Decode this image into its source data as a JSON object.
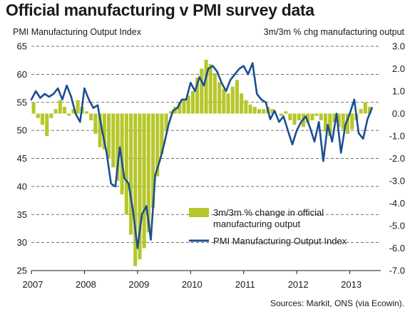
{
  "title": "Official manufacturing v PMI survey data",
  "source": "Sources: Markit, ONS (via Ecowin).",
  "chart_data": {
    "type": "bar",
    "left_axis_title": "PMI Manufacturing Output Index",
    "right_axis_title": "3m/3m % chg manufacturing output",
    "left_ylim": [
      25,
      65
    ],
    "left_ticks": [
      "25",
      "30",
      "35",
      "40",
      "45",
      "50",
      "55",
      "60",
      "65"
    ],
    "right_ylim": [
      -7.0,
      3.0
    ],
    "right_ticks": [
      "-7.0",
      "-6.0",
      "-5.0",
      "-4.0",
      "-3.0",
      "-2.0",
      "-1.0",
      "0.0",
      "1.0",
      "2.0",
      "3.0"
    ],
    "x_tick_labels": [
      "2007",
      "2008",
      "2009",
      "2010",
      "2011",
      "2012",
      "2013"
    ],
    "x_range": [
      2007.0,
      2013.583
    ],
    "grid": true,
    "legend_position": "lower-right",
    "colors": {
      "bars": "#b6c72b",
      "line": "#1b4f91",
      "grid": "#444444"
    },
    "series": [
      {
        "name": "3m/3m % change in official manufacturing output",
        "axis": "right",
        "type": "bar",
        "x": [
          2007.042,
          2007.125,
          2007.208,
          2007.292,
          2007.375,
          2007.458,
          2007.542,
          2007.625,
          2007.708,
          2007.792,
          2007.875,
          2007.958,
          2008.042,
          2008.125,
          2008.208,
          2008.292,
          2008.375,
          2008.458,
          2008.542,
          2008.625,
          2008.708,
          2008.792,
          2008.875,
          2008.958,
          2009.042,
          2009.125,
          2009.208,
          2009.292,
          2009.375,
          2009.458,
          2009.542,
          2009.625,
          2009.708,
          2009.792,
          2009.875,
          2009.958,
          2010.042,
          2010.125,
          2010.208,
          2010.292,
          2010.375,
          2010.458,
          2010.542,
          2010.625,
          2010.708,
          2010.792,
          2010.875,
          2010.958,
          2011.042,
          2011.125,
          2011.208,
          2011.292,
          2011.375,
          2011.458,
          2011.542,
          2011.625,
          2011.708,
          2011.792,
          2011.875,
          2011.958,
          2012.042,
          2012.125,
          2012.208,
          2012.292,
          2012.375,
          2012.458,
          2012.542,
          2012.625,
          2012.708,
          2012.792,
          2012.875,
          2012.958,
          2013.042,
          2013.125,
          2013.208,
          2013.292,
          2013.375
        ],
        "values": [
          0.5,
          -0.2,
          -0.5,
          -1.0,
          -0.2,
          0.2,
          0.6,
          0.3,
          -0.1,
          0.2,
          0.6,
          0.3,
          0.1,
          -0.3,
          -0.9,
          -1.5,
          -1.6,
          -2.0,
          -2.4,
          -3.0,
          -3.6,
          -4.5,
          -5.4,
          -6.8,
          -6.5,
          -6.0,
          -5.3,
          -4.2,
          -2.8,
          -1.8,
          -0.8,
          0.1,
          0.3,
          0.5,
          0.6,
          0.8,
          1.0,
          1.6,
          2.0,
          2.4,
          2.2,
          1.8,
          1.4,
          1.1,
          0.9,
          1.2,
          1.5,
          0.9,
          0.6,
          0.4,
          0.3,
          0.2,
          0.2,
          0.3,
          0.2,
          0.0,
          -0.1,
          0.1,
          -0.3,
          -0.5,
          -0.3,
          -0.6,
          -0.4,
          -0.3,
          -0.1,
          -0.3,
          -0.8,
          -1.0,
          -0.4,
          -0.6,
          -0.7,
          -0.9,
          -0.7,
          -0.3,
          0.2,
          0.5,
          0.3
        ]
      },
      {
        "name": "PMI Manufacturing Output Index",
        "axis": "left",
        "type": "line",
        "x": [
          2007.0,
          2007.083,
          2007.167,
          2007.25,
          2007.333,
          2007.417,
          2007.5,
          2007.583,
          2007.667,
          2007.75,
          2007.833,
          2007.917,
          2008.0,
          2008.083,
          2008.167,
          2008.25,
          2008.333,
          2008.417,
          2008.5,
          2008.583,
          2008.667,
          2008.75,
          2008.833,
          2008.917,
          2009.0,
          2009.083,
          2009.167,
          2009.25,
          2009.333,
          2009.417,
          2009.5,
          2009.583,
          2009.667,
          2009.75,
          2009.833,
          2009.917,
          2010.0,
          2010.083,
          2010.167,
          2010.25,
          2010.333,
          2010.417,
          2010.5,
          2010.583,
          2010.667,
          2010.75,
          2010.833,
          2010.917,
          2011.0,
          2011.083,
          2011.167,
          2011.25,
          2011.333,
          2011.417,
          2011.5,
          2011.583,
          2011.667,
          2011.75,
          2011.833,
          2011.917,
          2012.0,
          2012.083,
          2012.167,
          2012.25,
          2012.333,
          2012.417,
          2012.5,
          2012.583,
          2012.667,
          2012.75,
          2012.833,
          2012.917,
          2013.0,
          2013.083,
          2013.167,
          2013.25,
          2013.333,
          2013.417
        ],
        "values": [
          55.5,
          57.0,
          55.8,
          56.5,
          56.0,
          56.5,
          57.5,
          55.5,
          58.0,
          56.0,
          53.0,
          51.5,
          57.5,
          55.5,
          54.0,
          54.5,
          50.0,
          46.0,
          40.5,
          40.0,
          47.0,
          41.5,
          40.5,
          35.5,
          29.0,
          35.0,
          36.5,
          30.5,
          42.0,
          44.5,
          47.5,
          51.0,
          53.5,
          54.0,
          55.5,
          55.5,
          58.5,
          57.0,
          59.5,
          58.0,
          61.0,
          61.5,
          60.5,
          58.5,
          57.0,
          59.0,
          60.0,
          61.0,
          61.5,
          60.0,
          62.0,
          56.5,
          55.5,
          55.0,
          52.0,
          53.5,
          51.5,
          52.5,
          50.0,
          47.5,
          50.0,
          51.5,
          52.5,
          50.5,
          48.0,
          51.5,
          44.5,
          51.0,
          48.0,
          53.0,
          46.0,
          51.0,
          53.0,
          55.5,
          49.5,
          48.5,
          52.0,
          54.0
        ]
      }
    ]
  }
}
